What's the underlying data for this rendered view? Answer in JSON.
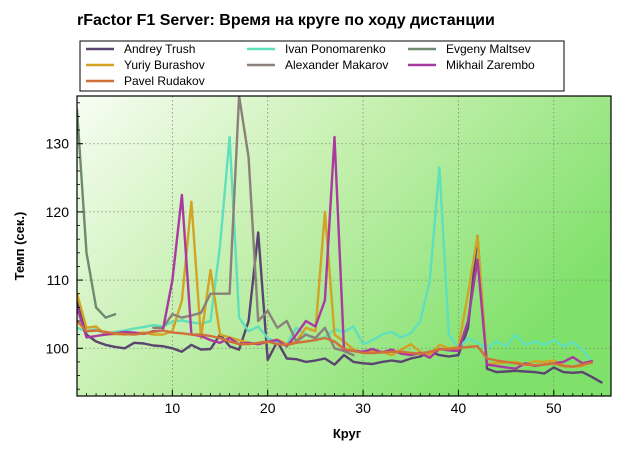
{
  "chart_data": {
    "type": "line",
    "title": "rFactor F1 Server: Время на круге по ходу дистанции",
    "xlabel": "Круг",
    "ylabel": "Темп (сек.)",
    "xlim": [
      0,
      56
    ],
    "ylim": [
      93,
      137
    ],
    "xticks": [
      10,
      20,
      30,
      40,
      50
    ],
    "yticks": [
      100,
      110,
      120,
      130
    ],
    "grid": true,
    "legend_position": "top",
    "series": [
      {
        "name": "Andrey Trush",
        "color": "#5a4470",
        "x": [
          0,
          1,
          2,
          3,
          4,
          5,
          6,
          7,
          8,
          9,
          10,
          11,
          12,
          13,
          14,
          15,
          16,
          17,
          18,
          19,
          20,
          21,
          22,
          23,
          24,
          25,
          26,
          27,
          28,
          29,
          30,
          31,
          32,
          33,
          34,
          35,
          36,
          37,
          38,
          39,
          40,
          41,
          42,
          43,
          44,
          45,
          46,
          47,
          48,
          49,
          50,
          51,
          52,
          53,
          54,
          55
        ],
        "values": [
          107,
          102,
          101,
          100.5,
          100.2,
          100,
          100.8,
          100.7,
          100.4,
          100.3,
          100,
          99.5,
          100.5,
          99.8,
          99.9,
          102,
          100.3,
          99.8,
          104,
          117,
          98.3,
          101,
          98.5,
          98.4,
          98,
          98.2,
          98.5,
          97.6,
          99,
          98,
          97.8,
          97.7,
          98,
          98.2,
          98,
          98.5,
          98.8,
          99.5,
          99,
          98.8,
          99,
          103,
          116.5,
          97,
          96.5,
          96.6,
          96.7,
          96.6,
          96.5,
          96.3,
          97.2,
          96.5,
          96.4,
          96.5,
          95.8,
          95
        ]
      },
      {
        "name": "Ivan Ponomarenko",
        "color": "#5fe0bc",
        "x": [
          0,
          1,
          2,
          3,
          4,
          5,
          6,
          7,
          8,
          9,
          10,
          11,
          12,
          13,
          14,
          15,
          16,
          17,
          18,
          19,
          20,
          21,
          22,
          23,
          24,
          25,
          26,
          27,
          28,
          29,
          30,
          31,
          32,
          33,
          34,
          35,
          36,
          37,
          38,
          39,
          40,
          41,
          42,
          43,
          44,
          45,
          46,
          47,
          48,
          49,
          50,
          51,
          52,
          53,
          54
        ],
        "values": [
          103,
          102.5,
          102.8,
          102,
          102.4,
          102.6,
          102.9,
          103.1,
          103.4,
          103.2,
          103.9,
          104.1,
          103.8,
          103.6,
          104,
          115,
          131,
          104.5,
          102.5,
          103.2,
          101.5,
          100.8,
          100.6,
          103,
          102,
          101.4,
          101.6,
          102.8,
          102.4,
          103.2,
          100.6,
          101.2,
          102,
          102.4,
          101.6,
          102.2,
          104,
          110,
          126.5,
          102,
          100,
          101.5,
          100.8,
          100,
          101,
          100.3,
          102,
          100.5,
          101,
          100.5,
          101.2,
          100.3,
          100.9,
          99.8,
          98
        ]
      },
      {
        "name": "Evgeny Maltsev",
        "color": "#6e8a70",
        "x": [
          0,
          1,
          2,
          3,
          4
        ],
        "values": [
          135,
          114,
          106,
          104.5,
          105
        ]
      },
      {
        "name": "Yuriy Burashov",
        "color": "#d4a324",
        "x": [
          0,
          1,
          2,
          3,
          4,
          5,
          6,
          7,
          8,
          9,
          10,
          11,
          12,
          13,
          14,
          15,
          16,
          17,
          18,
          19,
          20,
          21,
          22,
          23,
          24,
          25,
          26,
          27,
          28,
          29,
          30,
          31,
          32,
          33,
          34,
          35,
          36,
          37,
          38,
          39,
          40,
          41,
          42,
          43,
          44,
          45,
          46,
          47,
          48,
          49,
          50,
          51,
          52,
          53,
          54
        ],
        "values": [
          108,
          103,
          103.2,
          102,
          102.1,
          102,
          102.2,
          102.3,
          102,
          102,
          102.5,
          107,
          121.5,
          101.5,
          111.5,
          102,
          101.6,
          101.2,
          100.8,
          100.6,
          100.9,
          101.3,
          100.6,
          101,
          103,
          102.5,
          120,
          102,
          101,
          99.8,
          99.3,
          99.6,
          99.5,
          99,
          99.8,
          100.6,
          99.5,
          99,
          100.5,
          100,
          100.2,
          108,
          116.5,
          97.7,
          97.8,
          97.9,
          98,
          97.6,
          98.1,
          98,
          98.2,
          97.5,
          97.3,
          97.4,
          98.2
        ]
      },
      {
        "name": "Alexander Makarov",
        "color": "#8c807a",
        "x": [
          8,
          9,
          10,
          11,
          12,
          13,
          14,
          15,
          16,
          17,
          18,
          19,
          20,
          21,
          22,
          23,
          24,
          25,
          26,
          27,
          28,
          29
        ],
        "values": [
          103,
          103,
          105,
          104.5,
          104.8,
          105.2,
          108,
          108,
          108,
          137,
          128,
          104,
          105.5,
          103,
          104,
          101,
          102,
          101.5,
          103,
          100,
          99.6,
          99
        ]
      },
      {
        "name": "Mikhail Zarembo",
        "color": "#a83aa0",
        "x": [
          0,
          1,
          2,
          3,
          4,
          5,
          6,
          7,
          8,
          9,
          10,
          11,
          12,
          13,
          14,
          15,
          16,
          17,
          18,
          19,
          20,
          21,
          22,
          23,
          24,
          25,
          26,
          27,
          28,
          29,
          30,
          31,
          32,
          33,
          34,
          35,
          36,
          37,
          38,
          39,
          40,
          41,
          42,
          43,
          44,
          45,
          46,
          47,
          48,
          49,
          50,
          51,
          52,
          53,
          54
        ],
        "values": [
          106,
          101.6,
          101.8,
          102,
          102.2,
          102.4,
          102.3,
          102.1,
          102.5,
          102.6,
          110,
          122.5,
          102,
          101.8,
          101.2,
          100.8,
          101.5,
          100.6,
          100.8,
          100.6,
          101,
          101.2,
          100.3,
          102,
          104,
          103.2,
          107,
          131,
          99.8,
          99.6,
          99.5,
          99.9,
          99.4,
          99.8,
          99.2,
          99,
          99.3,
          98.6,
          99.9,
          99.7,
          99.6,
          104,
          113,
          97.6,
          97.4,
          97.2,
          97,
          97.8,
          97.4,
          97.6,
          97.8,
          98,
          98.7,
          97.8,
          98.1
        ]
      },
      {
        "name": "Pavel Rudakov",
        "color": "#d0713a",
        "x": [
          0,
          1,
          2,
          3,
          4,
          5,
          6,
          7,
          8,
          9,
          10,
          11,
          12,
          13,
          14,
          15,
          16,
          17,
          18,
          19,
          20,
          21,
          22,
          23,
          24,
          25,
          26,
          27,
          28,
          29,
          30,
          31,
          32,
          33,
          34,
          35,
          36,
          37,
          38,
          39,
          40,
          41,
          42,
          43,
          44,
          45,
          46,
          47,
          48,
          49,
          50,
          51,
          52,
          53,
          54
        ],
        "values": [
          104,
          102.5,
          102.6,
          102.4,
          102.2,
          102.1,
          102,
          102.2,
          102.4,
          102.6,
          102.3,
          102.2,
          102,
          102,
          101.8,
          101.5,
          101,
          100.6,
          100.6,
          100.8,
          101,
          100.6,
          100.5,
          100.8,
          101,
          101.2,
          101.5,
          101,
          99.9,
          99.6,
          99.3,
          99.3,
          99.4,
          99.5,
          99.5,
          99.3,
          99.2,
          99.5,
          99.8,
          99.9,
          100,
          100.2,
          100.3,
          98.5,
          98.2,
          98,
          97.8,
          97.6,
          97.5,
          97.6,
          97.8,
          97.4,
          97.3,
          97.6,
          97.9
        ]
      }
    ]
  }
}
